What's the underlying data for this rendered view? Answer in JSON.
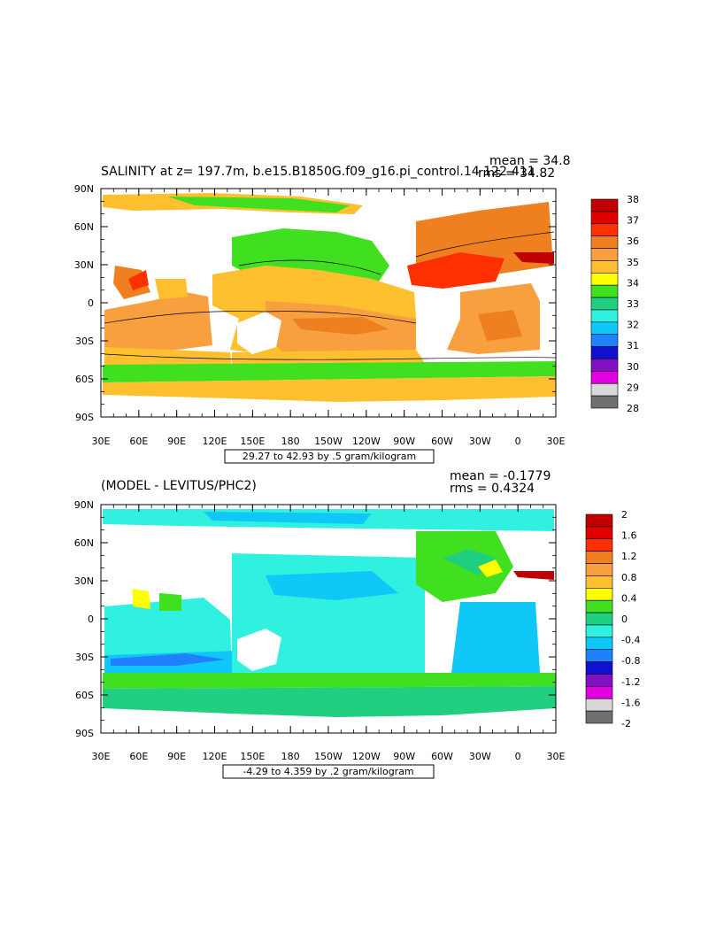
{
  "panels": [
    {
      "title": "SALINITY at z= 197.7m, b.e15.B1850G.f09_g16.pi_control.14 122-411",
      "mean_text": "mean = 34.8",
      "rms_text": "rms = 34.82",
      "range_text": "29.27 to 42.93 by .5 gram/kilogram",
      "legend_labels": [
        "38",
        "37",
        "36",
        "35",
        "34",
        "33",
        "32",
        "31",
        "30",
        "29",
        "28"
      ],
      "legend_colors": [
        "#c00000",
        "#e00000",
        "#ff3000",
        "#ee8020",
        "#f8a040",
        "#ffc030",
        "#ffff00",
        "#40e020",
        "#20d080",
        "#30f0e0",
        "#10c8f8",
        "#2080ff",
        "#1010d0",
        "#8010c0",
        "#e000e0",
        "#d8d8d8",
        "#707070"
      ]
    },
    {
      "title": "(MODEL - LEVITUS/PHC2)",
      "mean_text": "mean = -0.1779",
      "rms_text": "rms = 0.4324",
      "range_text": "-4.29 to 4.359 by .2 gram/kilogram",
      "legend_labels": [
        "2",
        "1.6",
        "1.2",
        "0.8",
        "0.4",
        "0",
        "-0.4",
        "-0.8",
        "-1.2",
        "-1.6",
        "-2"
      ],
      "legend_colors": [
        "#c00000",
        "#e00000",
        "#ff3000",
        "#ee8020",
        "#f8a040",
        "#ffc030",
        "#ffff00",
        "#40e020",
        "#20d080",
        "#30f0e0",
        "#10c8f8",
        "#2080ff",
        "#1010d0",
        "#8010c0",
        "#e000e0",
        "#d8d8d8",
        "#707070"
      ]
    }
  ],
  "lat_labels": [
    "90N",
    "60N",
    "30N",
    "0",
    "30S",
    "60S",
    "90S"
  ],
  "lon_labels": [
    "30E",
    "60E",
    "90E",
    "120E",
    "150E",
    "180",
    "150W",
    "120W",
    "90W",
    "60W",
    "30W",
    "0",
    "30E"
  ]
}
